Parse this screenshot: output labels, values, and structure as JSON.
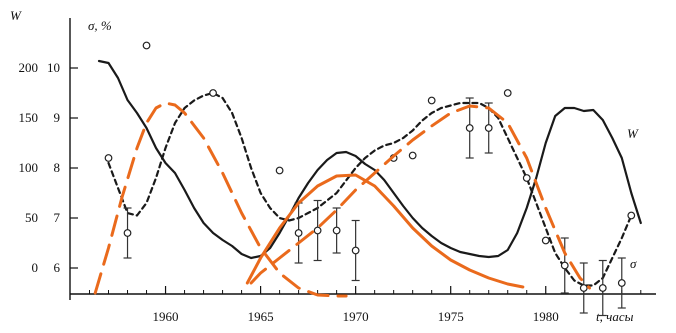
{
  "chart_data": {
    "type": "line",
    "xlabel": "t, часы",
    "y_left_label": "W",
    "y_right_label": "σ, %",
    "x_ticks": [
      1960,
      1965,
      1970,
      1975,
      1980
    ],
    "xlim": [
      1955.5,
      1985.8
    ],
    "y_left_ticks": [
      0,
      50,
      100,
      150,
      200
    ],
    "y_left_lim": [
      -30,
      250
    ],
    "y_right_ticks": [
      6,
      7,
      8,
      9,
      10
    ],
    "y_right_lim": [
      5.4,
      11.0
    ],
    "series": [
      {
        "name": "W",
        "style": "solid-black",
        "axis": "left",
        "x": [
          1956.5,
          1957.0,
          1957.5,
          1958.0,
          1958.5,
          1959.0,
          1959.5,
          1960.0,
          1960.5,
          1961.0,
          1961.5,
          1962.0,
          1962.5,
          1963.0,
          1963.5,
          1964.0,
          1964.5,
          1965.0,
          1965.5,
          1966.0,
          1966.5,
          1967.0,
          1967.5,
          1968.0,
          1968.5,
          1969.0,
          1969.5,
          1970.0,
          1970.5,
          1971.0,
          1971.5,
          1972.0,
          1972.5,
          1973.0,
          1973.5,
          1974.0,
          1974.5,
          1975.0,
          1975.5,
          1976.0,
          1976.5,
          1977.0,
          1977.5,
          1978.0,
          1978.5,
          1979.0,
          1979.5,
          1980.0,
          1980.5,
          1981.0,
          1981.5,
          1982.0,
          1982.5,
          1983.0,
          1983.5,
          1984.0,
          1984.5,
          1985.0
        ],
        "values": [
          207,
          205,
          190,
          168,
          155,
          140,
          120,
          105,
          95,
          78,
          60,
          45,
          35,
          28,
          22,
          14,
          10,
          12,
          20,
          35,
          52,
          70,
          85,
          98,
          108,
          115,
          116,
          112,
          104,
          98,
          88,
          75,
          62,
          50,
          40,
          32,
          25,
          20,
          16,
          14,
          12,
          11,
          12,
          18,
          35,
          60,
          90,
          125,
          152,
          160,
          160,
          157,
          158,
          148,
          130,
          110,
          75,
          45
        ]
      },
      {
        "name": "σ",
        "style": "dashed-black",
        "axis": "right",
        "x": [
          1957.0,
          1957.5,
          1958.0,
          1958.5,
          1959.0,
          1959.5,
          1960.0,
          1960.5,
          1961.0,
          1961.5,
          1962.0,
          1962.5,
          1963.0,
          1963.5,
          1964.0,
          1964.5,
          1965.0,
          1965.5,
          1966.0,
          1966.5,
          1967.0,
          1967.5,
          1968.0,
          1968.5,
          1969.0,
          1969.5,
          1970.0,
          1970.5,
          1971.0,
          1971.5,
          1972.0,
          1972.5,
          1973.0,
          1973.5,
          1974.0,
          1974.5,
          1975.0,
          1975.5,
          1976.0,
          1976.5,
          1977.0,
          1977.5,
          1978.0,
          1978.5,
          1979.0,
          1979.5,
          1980.0,
          1980.5,
          1981.0,
          1981.5,
          1982.0,
          1982.5,
          1983.0,
          1983.5,
          1984.0,
          1984.5
        ],
        "values": [
          8.1,
          7.6,
          7.1,
          7.05,
          7.3,
          7.8,
          8.4,
          8.9,
          9.2,
          9.35,
          9.45,
          9.5,
          9.4,
          9.1,
          8.6,
          8.0,
          7.5,
          7.2,
          7.0,
          6.95,
          7.0,
          7.1,
          7.2,
          7.35,
          7.5,
          7.75,
          8.0,
          8.2,
          8.35,
          8.45,
          8.5,
          8.6,
          8.75,
          8.95,
          9.1,
          9.2,
          9.25,
          9.3,
          9.3,
          9.3,
          9.2,
          9.0,
          8.6,
          8.2,
          7.8,
          7.3,
          6.8,
          6.3,
          6.0,
          5.75,
          5.65,
          5.65,
          5.8,
          6.2,
          6.6,
          7.05
        ]
      },
      {
        "name": "σ points",
        "style": "open-circles",
        "axis": "right",
        "x": [
          1957.0,
          1958.0,
          1959.0,
          1962.5,
          1966.0,
          1967.0,
          1968.0,
          1969.0,
          1970.0,
          1972.0,
          1973.0,
          1974.0,
          1976.0,
          1977.0,
          1978.0,
          1979.0,
          1980.0,
          1981.0,
          1982.0,
          1983.0,
          1984.0,
          1984.5
        ],
        "values": [
          8.2,
          6.7,
          10.45,
          9.5,
          7.95,
          6.7,
          6.75,
          6.75,
          6.35,
          8.2,
          8.25,
          9.35,
          8.8,
          8.8,
          9.5,
          7.8,
          6.55,
          6.05,
          5.6,
          5.6,
          5.7,
          7.05
        ],
        "errors": [
          0,
          0.5,
          0,
          0,
          0,
          0.6,
          0.6,
          0.45,
          0.6,
          0,
          0,
          0,
          0.6,
          0.5,
          0,
          0,
          0,
          0.55,
          0.5,
          0.55,
          0.5,
          0
        ]
      },
      {
        "name": "orange-dashed-1",
        "style": "dashed-orange",
        "axis": "left",
        "x": [
          1956.3,
          1957.0,
          1957.7,
          1958.5,
          1959.0,
          1959.5,
          1960.0,
          1960.5,
          1961.0,
          1962.0,
          1963.0,
          1964.0,
          1965.0,
          1966.0,
          1967.0,
          1968.0,
          1969.0,
          1969.5
        ],
        "values": [
          -25,
          20,
          70,
          120,
          145,
          160,
          165,
          163,
          155,
          130,
          95,
          55,
          20,
          -5,
          -20,
          -27,
          -28,
          -28
        ]
      },
      {
        "name": "orange-dashed-2",
        "style": "dashed-orange",
        "axis": "left",
        "x": [
          1964.5,
          1965.0,
          1966.0,
          1967.0,
          1968.0,
          1969.0,
          1970.0,
          1971.0,
          1972.0,
          1973.0,
          1974.0,
          1975.0,
          1976.0,
          1977.0,
          1978.0,
          1979.0,
          1980.0,
          1981.0,
          1981.8,
          1982.3
        ],
        "values": [
          -15,
          -5,
          10,
          25,
          40,
          58,
          78,
          95,
          112,
          128,
          142,
          155,
          162,
          160,
          145,
          110,
          60,
          15,
          -10,
          -20
        ]
      },
      {
        "name": "orange-solid",
        "style": "solid-orange",
        "axis": "left",
        "x": [
          1964.3,
          1965.0,
          1966.0,
          1967.0,
          1968.0,
          1969.0,
          1970.0,
          1971.0,
          1972.0,
          1973.0,
          1974.0,
          1975.0,
          1976.0,
          1977.0,
          1978.0,
          1978.8
        ],
        "values": [
          -15,
          10,
          40,
          65,
          82,
          92,
          93,
          82,
          62,
          40,
          22,
          8,
          -2,
          -10,
          -16,
          -19
        ]
      }
    ]
  }
}
